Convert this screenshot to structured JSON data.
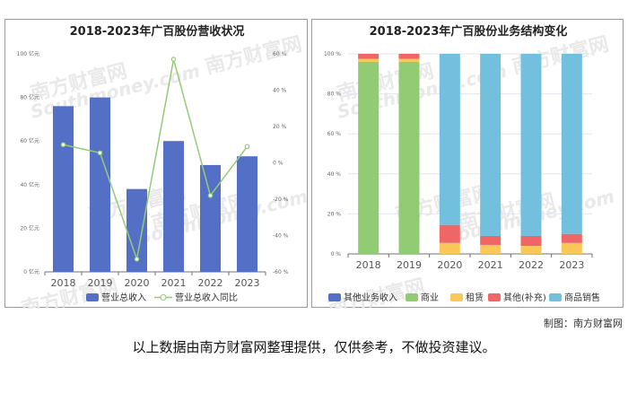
{
  "watermark": {
    "text_cn": "南方财富网",
    "text_en": "Southmoney.com",
    "color": "#e9e9e9"
  },
  "credit_label": "制图：南方财富网",
  "disclaimer": "以上数据由南方财富网整理提供，仅供参考，不做投资建议。",
  "chart_data": [
    {
      "type": "bar",
      "title": "2018-2023年广百股份营收状况",
      "categories": [
        "2018",
        "2019",
        "2020",
        "2021",
        "2022",
        "2023"
      ],
      "series": [
        {
          "name": "营业总收入",
          "kind": "bar",
          "axis": "left",
          "color": "#5470c6",
          "values": [
            76,
            80,
            38,
            60,
            49,
            53
          ]
        },
        {
          "name": "营业总收入同比",
          "kind": "line",
          "axis": "right",
          "color": "#91cc75",
          "values": [
            10,
            5.5,
            -53,
            57,
            -18,
            9
          ]
        }
      ],
      "y_left": {
        "min": 0,
        "max": 100,
        "ticks": [
          "0 亿元",
          "20 亿元",
          "40 亿元",
          "60 亿元",
          "80 亿元",
          "100 亿元"
        ]
      },
      "y_right": {
        "min": -60,
        "max": 60,
        "ticks": [
          "-60 %",
          "-40 %",
          "-20 %",
          "0 %",
          "20 %",
          "40 %",
          "60 %"
        ]
      },
      "legend_position": "bottom",
      "grid": false
    },
    {
      "type": "bar",
      "stacked": true,
      "title": "2018-2023年广百股份业务结构变化",
      "categories": [
        "2018",
        "2019",
        "2020",
        "2021",
        "2022",
        "2023"
      ],
      "series": [
        {
          "name": "其他业务收入",
          "color": "#5470c6",
          "values": [
            0,
            0,
            0,
            0,
            0,
            0
          ]
        },
        {
          "name": "商业",
          "color": "#91cc75",
          "values": [
            96,
            96,
            0,
            0,
            0,
            0
          ]
        },
        {
          "name": "租赁",
          "color": "#fac858",
          "values": [
            1.5,
            1.5,
            5.5,
            4.5,
            4,
            5.5
          ]
        },
        {
          "name": "其他(补充)",
          "color": "#ee6666",
          "values": [
            2.5,
            2.5,
            9,
            4.5,
            5,
            4.5
          ]
        },
        {
          "name": "商品销售",
          "color": "#73c0de",
          "values": [
            0,
            0,
            85.5,
            91,
            91,
            90
          ]
        }
      ],
      "y": {
        "min": 0,
        "max": 100,
        "ticks": [
          "0 %",
          "20 %",
          "40 %",
          "60 %",
          "80 %",
          "100 %"
        ]
      },
      "legend_position": "bottom",
      "grid": true
    }
  ]
}
